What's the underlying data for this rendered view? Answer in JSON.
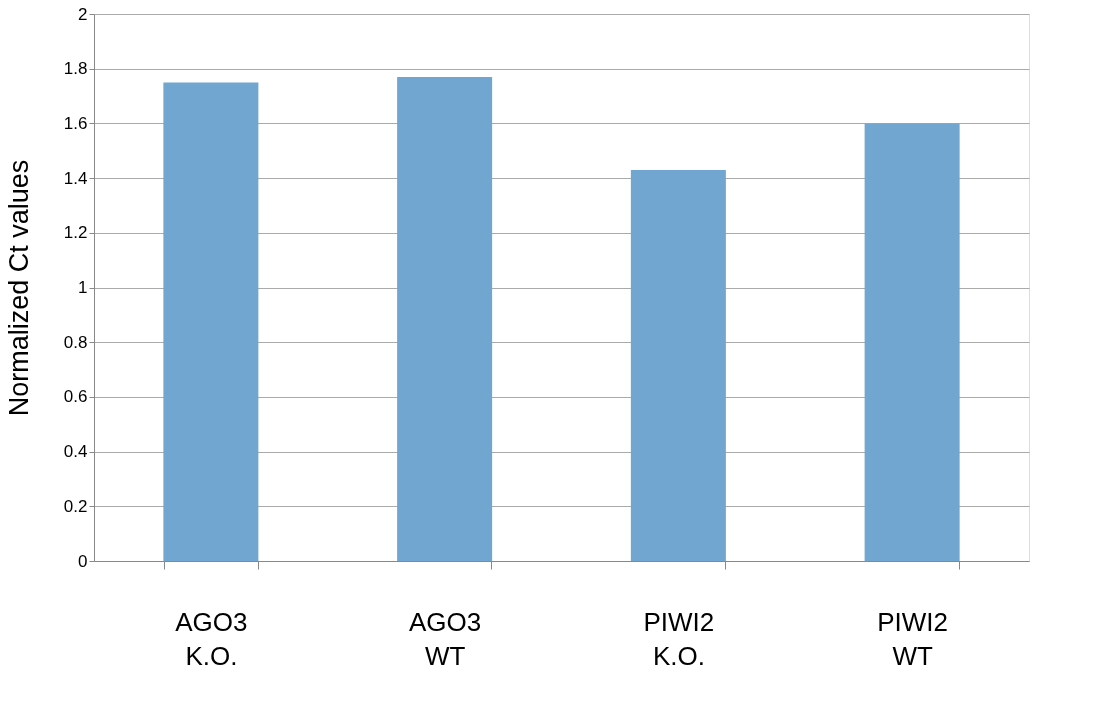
{
  "chart_data": {
    "type": "bar",
    "ylabel": "Normalized Ct values",
    "categories": [
      "AGO3 K.O.",
      "AGO3 WT",
      "PIWI2 K.O.",
      "PIWI2 WT"
    ],
    "values": [
      1.75,
      1.77,
      1.43,
      1.6
    ],
    "color": "#70a6d0",
    "ylim": [
      0,
      2
    ],
    "yticks": [
      0,
      0.2,
      0.4,
      0.6,
      0.8,
      1,
      1.2,
      1.4,
      1.6,
      1.8,
      2
    ],
    "grid": "y"
  }
}
